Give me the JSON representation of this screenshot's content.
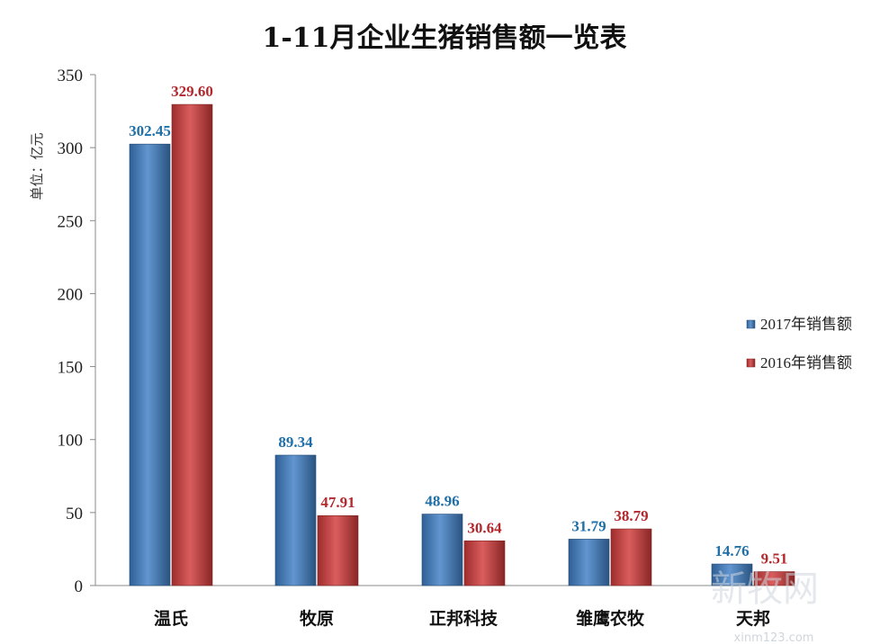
{
  "chart_data": {
    "type": "bar",
    "title": "1-11月企业生猪销售额一览表",
    "unit_label": "单位：亿元",
    "categories": [
      "温氏",
      "牧原",
      "正邦科技",
      "雏鹰农牧",
      "天邦"
    ],
    "series": [
      {
        "name": "2017年销售额",
        "values": [
          302.45,
          89.34,
          48.96,
          31.79,
          14.76
        ],
        "labels": [
          "302.45",
          "89.34",
          "48.96",
          "31.79",
          "14.76"
        ],
        "color": "#3f7fc6",
        "label_color": "#1f6fa8"
      },
      {
        "name": "2016年销售额",
        "values": [
          329.6,
          47.91,
          30.64,
          38.79,
          9.51
        ],
        "labels": [
          "329.60",
          "47.91",
          "30.64",
          "38.79",
          "9.51"
        ],
        "color": "#d23a3a",
        "label_color": "#b3282d"
      }
    ],
    "ylim": [
      0,
      350
    ],
    "yticks": [
      0,
      50,
      100,
      150,
      200,
      250,
      300,
      350
    ],
    "legend_position": "right",
    "grid": false
  },
  "watermark": {
    "mark_text": "新牧网",
    "url_text": "xinm123.com"
  }
}
